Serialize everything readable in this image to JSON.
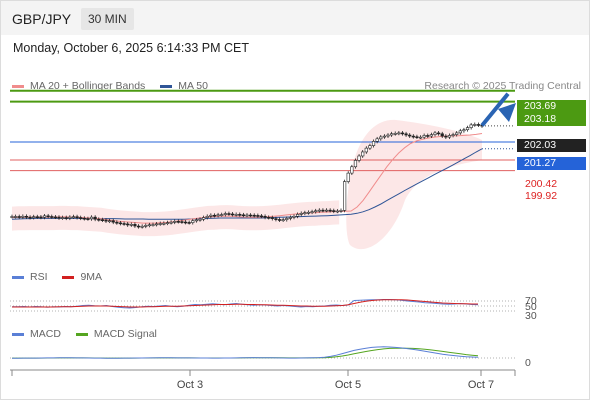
{
  "header": {
    "pair": "GBP/JPY",
    "timeframe": "30 MIN"
  },
  "datetime": "Monday, October 6, 2025 6:14:33 PM CET",
  "legend_main": [
    {
      "label": "MA 20 + Bollinger Bands",
      "color": "#f08c8c"
    },
    {
      "label": "MA 50",
      "color": "#2f5597"
    }
  ],
  "copyright": "Research © 2025 Trading Central",
  "legend_rsi": [
    {
      "label": "RSI",
      "color": "#5a7fd6"
    },
    {
      "label": "9MA",
      "color": "#d22020"
    }
  ],
  "legend_macd": [
    {
      "label": "MACD",
      "color": "#5a7fd6"
    },
    {
      "label": "MACD Signal",
      "color": "#55a520"
    }
  ],
  "colors": {
    "green": "#4c9a12",
    "blue": "#2563d8",
    "red": "#e06060",
    "dark": "#222222"
  },
  "price_labels": {
    "resistance_2": "203.69",
    "resistance_1": "203.18",
    "last": "202.03",
    "pivot": "201.27",
    "support_1": "200.42",
    "support_2": "199.92"
  },
  "chart_data": {
    "type": "line",
    "pair": "GBP/JPY",
    "timeframe": "30 MIN",
    "x_ticks": [
      "Oct 3",
      "Oct 5",
      "Oct 7"
    ],
    "ylim": [
      195.6,
      204.2
    ],
    "levels": [
      {
        "name": "resistance",
        "value": 203.69,
        "color": "#4c9a12"
      },
      {
        "name": "resistance",
        "value": 203.18,
        "color": "#4c9a12"
      },
      {
        "name": "pivot",
        "value": 201.27,
        "color": "#2563d8"
      },
      {
        "name": "support",
        "value": 200.42,
        "color": "#e06060"
      },
      {
        "name": "support",
        "value": 199.92,
        "color": "#e06060"
      }
    ],
    "last_price": 202.03,
    "price_close": [
      197.75,
      197.75,
      197.73,
      197.76,
      197.72,
      197.7,
      197.74,
      197.73,
      197.71,
      197.78,
      197.75,
      197.73,
      197.72,
      197.68,
      197.7,
      197.67,
      197.72,
      197.74,
      197.7,
      197.67,
      197.65,
      197.64,
      197.72,
      197.62,
      197.6,
      197.58,
      197.53,
      197.55,
      197.48,
      197.45,
      197.42,
      197.4,
      197.35,
      197.38,
      197.3,
      197.27,
      197.29,
      197.33,
      197.36,
      197.37,
      197.4,
      197.42,
      197.43,
      197.46,
      197.48,
      197.52,
      197.51,
      197.49,
      197.47,
      197.46,
      197.55,
      197.59,
      197.62,
      197.7,
      197.76,
      197.81,
      197.8,
      197.83,
      197.84,
      197.89,
      197.87,
      197.84,
      197.85,
      197.83,
      197.81,
      197.82,
      197.81,
      197.8,
      197.78,
      197.76,
      197.71,
      197.7,
      197.65,
      197.61,
      197.58,
      197.6,
      197.66,
      197.71,
      197.76,
      197.85,
      197.9,
      197.93,
      197.95,
      197.98,
      198.02,
      198.05,
      198.04,
      198.05,
      198.03,
      198.0,
      198.01,
      198.04,
      199.4,
      199.8,
      200.1,
      200.4,
      200.61,
      200.8,
      200.98,
      201.1,
      201.3,
      201.42,
      201.51,
      201.55,
      201.6,
      201.66,
      201.68,
      201.7,
      201.66,
      201.6,
      201.55,
      201.52,
      201.5,
      201.5,
      201.58,
      201.55,
      201.62,
      201.7,
      201.66,
      201.55,
      201.5,
      201.58,
      201.62,
      201.7,
      201.8,
      201.85,
      201.95,
      202.08,
      202.1,
      202.07,
      202.03
    ],
    "ma20": [
      197.7,
      197.71,
      197.71,
      197.72,
      197.72,
      197.72,
      197.72,
      197.72,
      197.73,
      197.73,
      197.72,
      197.72,
      197.7,
      197.68,
      197.66,
      197.64,
      197.6,
      197.56,
      197.53,
      197.5,
      197.48,
      197.46,
      197.44,
      197.44,
      197.44,
      197.45,
      197.47,
      197.5,
      197.54,
      197.58,
      197.62,
      197.66,
      197.7,
      197.73,
      197.74,
      197.76,
      197.77,
      197.76,
      197.74,
      197.72,
      197.71,
      197.71,
      197.72,
      197.74,
      197.76,
      197.79,
      197.82,
      197.85,
      197.88,
      197.9,
      197.92,
      197.93,
      197.95,
      197.96,
      197.98,
      197.99,
      198.0,
      198.01,
      198.2,
      198.5,
      198.9,
      199.3,
      199.7,
      200.1,
      200.45,
      200.75,
      201.0,
      201.2,
      201.32,
      201.4,
      201.46,
      201.5,
      201.53,
      201.55,
      201.56,
      201.57,
      201.58,
      201.6,
      201.63,
      201.67
    ],
    "ma50": [
      197.62,
      197.63,
      197.64,
      197.65,
      197.66,
      197.66,
      197.66,
      197.66,
      197.66,
      197.66,
      197.66,
      197.66,
      197.65,
      197.65,
      197.65,
      197.65,
      197.65,
      197.65,
      197.64,
      197.63,
      197.63,
      197.63,
      197.63,
      197.62,
      197.62,
      197.62,
      197.62,
      197.62,
      197.62,
      197.62,
      197.63,
      197.64,
      197.65,
      197.66,
      197.67,
      197.68,
      197.68,
      197.68,
      197.68,
      197.68,
      197.68,
      197.68,
      197.68,
      197.69,
      197.7,
      197.71,
      197.72,
      197.73,
      197.74,
      197.75,
      197.76,
      197.77,
      197.78,
      197.79,
      197.8,
      197.82,
      197.84,
      197.86,
      197.9,
      197.97,
      198.07,
      198.2,
      198.34,
      198.5,
      198.66,
      198.82,
      198.98,
      199.13,
      199.28,
      199.43,
      199.58,
      199.73,
      199.88,
      200.02,
      200.17,
      200.32,
      200.48,
      200.63,
      200.8,
      200.95
    ],
    "rsi": {
      "levels": [
        70,
        50,
        30
      ],
      "rsi": [
        47,
        47,
        48,
        46,
        48,
        47,
        45,
        47,
        46,
        48,
        47,
        49,
        52,
        53,
        51,
        50,
        52,
        48,
        45,
        43,
        42,
        44,
        47,
        49,
        48,
        50,
        52,
        49,
        47,
        49,
        53,
        56,
        55,
        57,
        59,
        57,
        55,
        58,
        60,
        57,
        55,
        53,
        55,
        54,
        52,
        50,
        52,
        50,
        48,
        46,
        48,
        47,
        49,
        50,
        53,
        54,
        52,
        54,
        72,
        73,
        74,
        75,
        75,
        76,
        76,
        75,
        73,
        70,
        68,
        66,
        63,
        62,
        60,
        58,
        57,
        58,
        60,
        58,
        56,
        55
      ],
      "ma9": [
        46,
        46,
        46,
        46,
        46,
        46,
        46,
        46,
        47,
        47,
        47,
        48,
        49,
        50,
        50,
        50,
        50,
        49,
        48,
        47,
        46,
        46,
        46,
        47,
        47,
        48,
        49,
        49,
        49,
        50,
        51,
        52,
        53,
        54,
        55,
        56,
        56,
        56,
        57,
        57,
        56,
        56,
        55,
        55,
        54,
        53,
        53,
        52,
        51,
        50,
        50,
        49,
        49,
        49,
        50,
        51,
        52,
        55,
        60,
        65,
        69,
        72,
        74,
        75,
        75,
        75,
        75,
        74,
        72,
        70,
        68,
        66,
        64,
        62,
        61,
        60,
        59,
        59,
        58,
        58
      ]
    },
    "macd": {
      "zero": 0,
      "macd": [
        -0.02,
        -0.02,
        -0.01,
        -0.01,
        -0.01,
        0.0,
        0.01,
        0.01,
        0.02,
        0.02,
        0.02,
        0.01,
        0.01,
        0.0,
        -0.01,
        -0.01,
        -0.02,
        -0.02,
        -0.02,
        -0.01,
        -0.01,
        0.0,
        0.0,
        0.01,
        0.01,
        0.02,
        0.02,
        0.02,
        0.01,
        0.01,
        0.01,
        0.0,
        0.0,
        0.0,
        -0.01,
        -0.01,
        0.0,
        0.0,
        0.01,
        0.02,
        0.04,
        0.05,
        0.04,
        0.03,
        0.02,
        0.01,
        0.0,
        -0.01,
        -0.01,
        0.0,
        0.01,
        0.02,
        0.05,
        0.1,
        0.2,
        0.35,
        0.55,
        0.75,
        0.95,
        1.1,
        1.22,
        1.32,
        1.38,
        1.4,
        1.38,
        1.32,
        1.26,
        1.18,
        1.08,
        0.96,
        0.85,
        0.72,
        0.6,
        0.48,
        0.38,
        0.3,
        0.22,
        0.16,
        0.12,
        0.1
      ],
      "signal": [
        -0.01,
        -0.01,
        -0.01,
        -0.01,
        -0.01,
        -0.01,
        0.0,
        0.0,
        0.01,
        0.01,
        0.01,
        0.01,
        0.01,
        0.01,
        0.0,
        0.0,
        -0.01,
        -0.01,
        -0.01,
        -0.01,
        -0.01,
        -0.01,
        0.0,
        0.0,
        0.01,
        0.01,
        0.01,
        0.01,
        0.01,
        0.01,
        0.01,
        0.01,
        0.0,
        0.0,
        0.0,
        0.0,
        0.0,
        0.0,
        0.0,
        0.01,
        0.02,
        0.03,
        0.03,
        0.03,
        0.03,
        0.02,
        0.02,
        0.01,
        0.01,
        0.01,
        0.01,
        0.01,
        0.02,
        0.04,
        0.08,
        0.15,
        0.25,
        0.38,
        0.52,
        0.67,
        0.81,
        0.94,
        1.05,
        1.14,
        1.2,
        1.23,
        1.24,
        1.23,
        1.2,
        1.15,
        1.09,
        1.01,
        0.92,
        0.82,
        0.72,
        0.62,
        0.52,
        0.43,
        0.35,
        0.28
      ]
    }
  }
}
